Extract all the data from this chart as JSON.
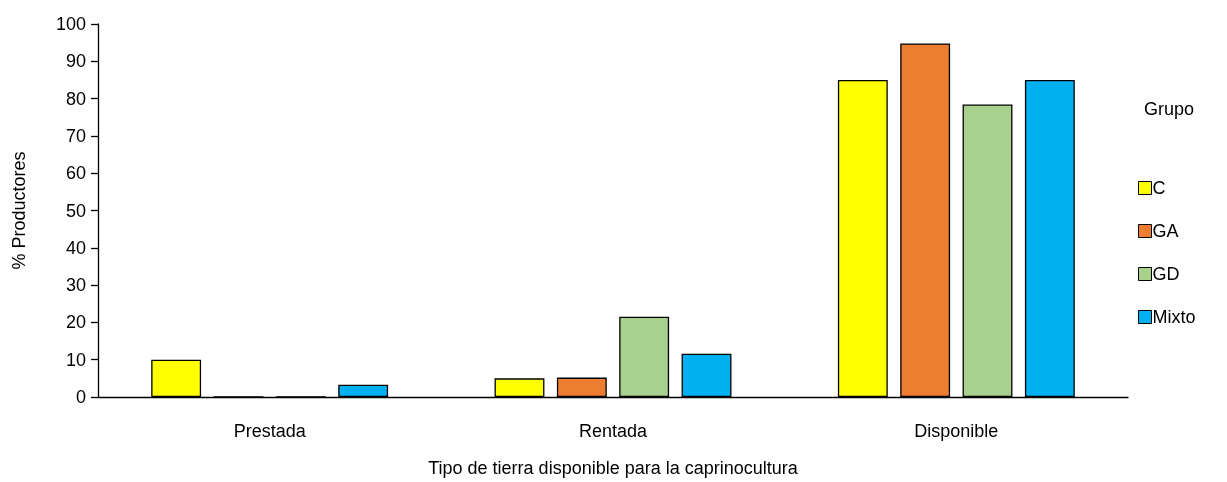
{
  "chart_data": {
    "type": "bar",
    "xlabel": "Tipo de tierra disponible para la caprinocultura",
    "ylabel": "% Productores",
    "legend_title": "Grupo",
    "categories": [
      "Prestada",
      "Rentada",
      "Disponible"
    ],
    "series": [
      {
        "name": "C",
        "color": "#ffff00",
        "values": [
          10,
          5,
          85
        ]
      },
      {
        "name": "GA",
        "color": "#ed7d31",
        "values": [
          0,
          5.2,
          94.8
        ]
      },
      {
        "name": "GD",
        "color": "#a9d18e",
        "values": [
          0,
          21.5,
          78.4
        ]
      },
      {
        "name": "Mixto",
        "color": "#00b0f0",
        "values": [
          3.3,
          11.6,
          85
        ]
      }
    ],
    "ylim": [
      0,
      100
    ],
    "yticks": [
      0,
      10,
      20,
      30,
      40,
      50,
      60,
      70,
      80,
      90,
      100
    ],
    "grid": false,
    "legend": "right"
  }
}
